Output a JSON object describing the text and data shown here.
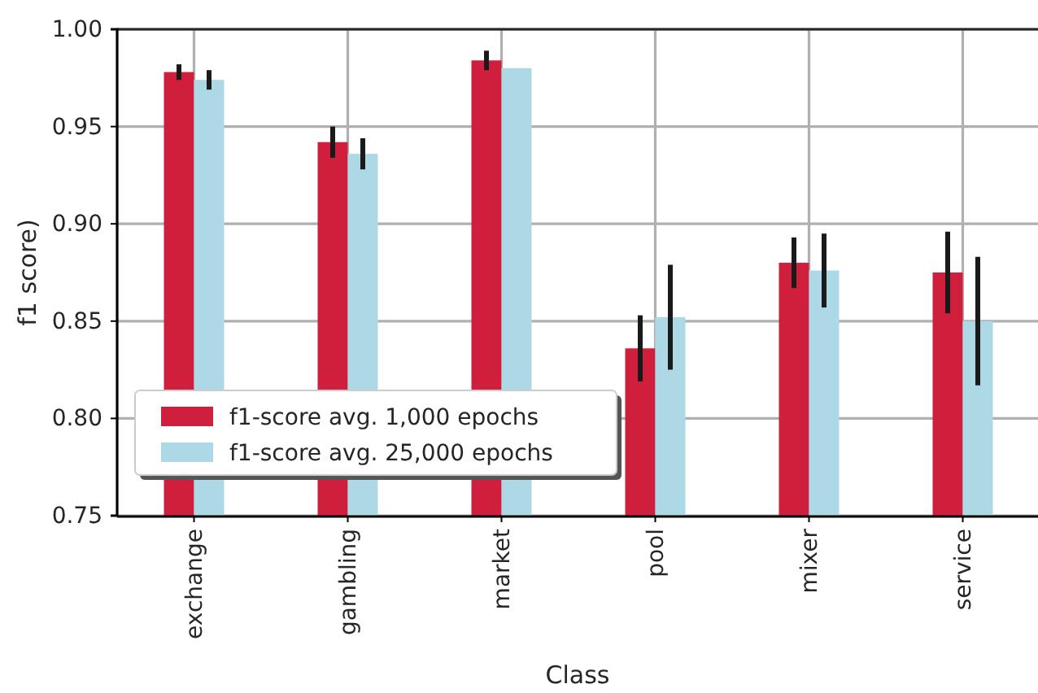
{
  "chart_data": {
    "type": "bar",
    "xlabel": "Class",
    "ylabel": "f1 score)",
    "categories": [
      "exchange",
      "gambling",
      "market",
      "pool",
      "mixer",
      "service"
    ],
    "series": [
      {
        "name": "f1-score avg. 1,000 epochs",
        "color": "#d01f3c",
        "values": [
          0.978,
          0.942,
          0.984,
          0.836,
          0.88,
          0.875
        ],
        "errors": [
          0.004,
          0.008,
          0.005,
          0.017,
          0.013,
          0.021
        ]
      },
      {
        "name": "f1-score avg. 25,000 epochs",
        "color": "#add8e6",
        "values": [
          0.974,
          0.936,
          0.98,
          0.852,
          0.876,
          0.85
        ],
        "errors": [
          0.005,
          0.008,
          null,
          0.027,
          0.019,
          0.033
        ]
      }
    ],
    "ylim": [
      0.75,
      1.0
    ],
    "yticks": [
      {
        "value": 0.75,
        "label": "0.75"
      },
      {
        "value": 0.8,
        "label": "0.80"
      },
      {
        "value": 0.85,
        "label": "0.85"
      },
      {
        "value": 0.9,
        "label": "0.90"
      },
      {
        "value": 0.95,
        "label": "0.95"
      },
      {
        "value": 1.0,
        "label": "1.00"
      }
    ],
    "grid": true,
    "legend": "bottom left"
  }
}
